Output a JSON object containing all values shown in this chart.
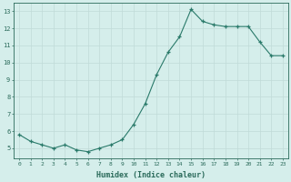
{
  "x": [
    0,
    1,
    2,
    3,
    4,
    5,
    6,
    7,
    8,
    9,
    10,
    11,
    12,
    13,
    14,
    15,
    16,
    17,
    18,
    19,
    20,
    21,
    22,
    23
  ],
  "y": [
    5.8,
    5.4,
    5.2,
    5.0,
    5.2,
    4.9,
    4.8,
    5.0,
    5.2,
    5.5,
    6.4,
    7.6,
    9.3,
    10.6,
    11.5,
    13.1,
    12.4,
    12.2,
    12.1,
    12.1,
    12.1,
    11.2,
    10.4,
    10.4
  ],
  "xlabel": "Humidex (Indice chaleur)",
  "line_color": "#2a7a6a",
  "marker_color": "#2a7a6a",
  "bg_color": "#d5eeeb",
  "grid_color": "#c0dbd8",
  "text_color": "#2a6a5a",
  "ylim": [
    4.4,
    13.5
  ],
  "xlim": [
    -0.5,
    23.5
  ],
  "yticks": [
    5,
    6,
    7,
    8,
    9,
    10,
    11,
    12,
    13
  ],
  "xtick_labels": [
    "0",
    "1",
    "2",
    "3",
    "4",
    "5",
    "6",
    "7",
    "8",
    "9",
    "10",
    "11",
    "12",
    "13",
    "14",
    "15",
    "16",
    "17",
    "18",
    "19",
    "20",
    "21",
    "22",
    "23"
  ]
}
